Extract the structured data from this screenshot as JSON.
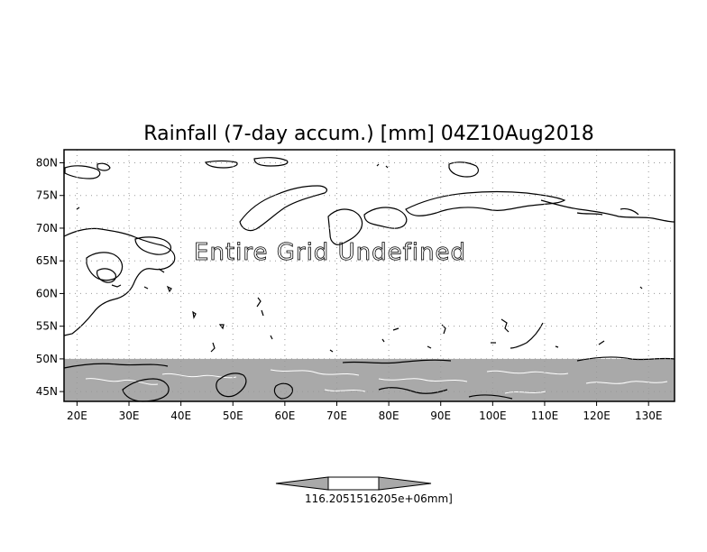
{
  "map": {
    "title": "Rainfall (7-day accum.) [mm] 04Z10Aug2018",
    "overlay_text": "Entire Grid Undefined",
    "lon_range": [
      17.5,
      135
    ],
    "lat_range": [
      43.5,
      82
    ],
    "lat_ticks": [
      {
        "value": 80,
        "label": "80N"
      },
      {
        "value": 75,
        "label": "75N"
      },
      {
        "value": 70,
        "label": "70N"
      },
      {
        "value": 65,
        "label": "65N"
      },
      {
        "value": 60,
        "label": "60N"
      },
      {
        "value": 55,
        "label": "55N"
      },
      {
        "value": 50,
        "label": "50N"
      },
      {
        "value": 45,
        "label": "45N"
      }
    ],
    "lon_ticks": [
      {
        "value": 20,
        "label": "20E"
      },
      {
        "value": 30,
        "label": "30E"
      },
      {
        "value": 40,
        "label": "40E"
      },
      {
        "value": 50,
        "label": "50E"
      },
      {
        "value": 60,
        "label": "60E"
      },
      {
        "value": 70,
        "label": "70E"
      },
      {
        "value": 80,
        "label": "80E"
      },
      {
        "value": 90,
        "label": "90E"
      },
      {
        "value": 100,
        "label": "100E"
      },
      {
        "value": 110,
        "label": "110E"
      },
      {
        "value": 120,
        "label": "120E"
      },
      {
        "value": 130,
        "label": "130E"
      }
    ],
    "masked_band_lat": [
      43.5,
      50
    ],
    "grid": "dotted",
    "colors": {
      "mask": "#a9a9a9",
      "coast": "#000000",
      "grid": "#999999",
      "rivers": "#ffffff"
    }
  },
  "colorbar": {
    "label": "116.2051516205e+06mm]",
    "colors": {
      "ends": "#a9a9a9",
      "center": "#ffffff"
    }
  }
}
